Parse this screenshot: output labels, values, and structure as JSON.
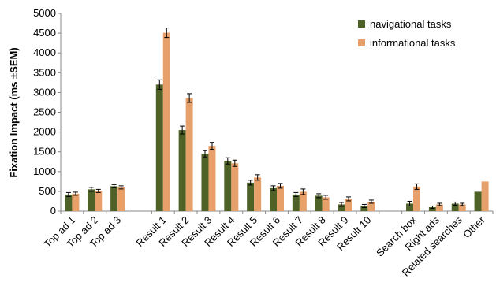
{
  "chart_data": {
    "type": "bar",
    "ylabel": "Fixation Impact (ms ±SEM)",
    "ylim": [
      0,
      5000
    ],
    "yticks": [
      0,
      500,
      1000,
      1500,
      2000,
      2500,
      3000,
      3500,
      4000,
      4500,
      5000
    ],
    "legend_position": "top-right",
    "categories": [
      "Top ad 1",
      "Top ad 2",
      "Top ad 3",
      "",
      "Result 1",
      "Result 2",
      "Result 3",
      "Result 4",
      "Result 5",
      "Result 6",
      "Result 7",
      "Result 8",
      "Result 9",
      "Result 10",
      "",
      "Search box",
      "Right ads",
      "Related searches",
      "Other"
    ],
    "series": [
      {
        "name": "navigational tasks",
        "color": "#4e6228",
        "values": [
          420,
          550,
          630,
          null,
          3200,
          2050,
          1450,
          1270,
          720,
          580,
          420,
          390,
          170,
          130,
          null,
          190,
          100,
          190,
          490
        ],
        "errors": [
          50,
          50,
          40,
          null,
          120,
          100,
          80,
          80,
          60,
          60,
          50,
          50,
          50,
          40,
          null,
          60,
          30,
          40,
          null
        ]
      },
      {
        "name": "informational tasks",
        "color": "#e8a06a",
        "values": [
          440,
          510,
          600,
          null,
          4510,
          2860,
          1650,
          1210,
          850,
          640,
          490,
          350,
          310,
          240,
          null,
          620,
          170,
          170,
          750
        ],
        "errors": [
          40,
          40,
          40,
          null,
          120,
          110,
          90,
          80,
          70,
          60,
          70,
          50,
          50,
          40,
          null,
          70,
          30,
          30,
          null
        ]
      }
    ]
  }
}
